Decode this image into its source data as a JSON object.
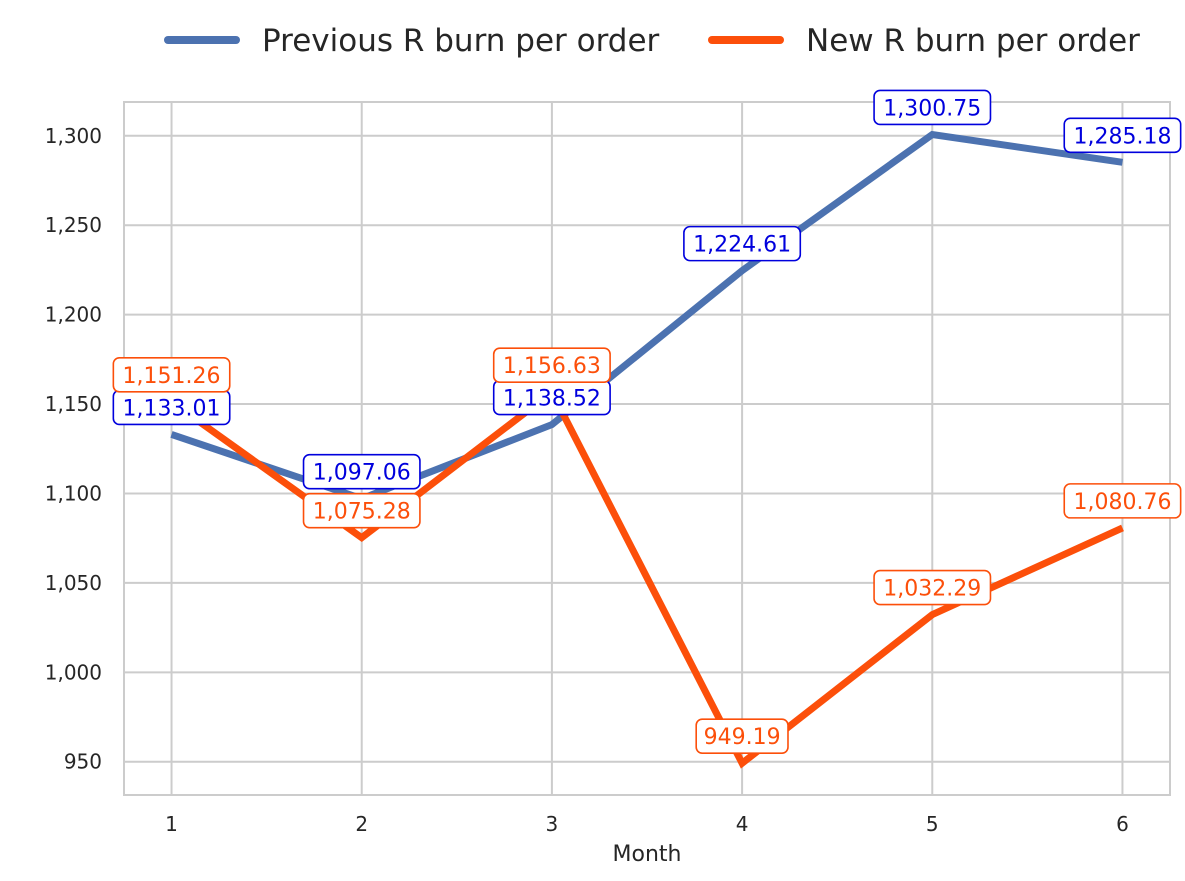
{
  "chart_data": {
    "type": "line",
    "title": "",
    "xlabel": "Month",
    "ylabel": "",
    "x": [
      1,
      2,
      3,
      4,
      5,
      6
    ],
    "x_tick_labels": [
      "1",
      "2",
      "3",
      "4",
      "5",
      "6"
    ],
    "xlim": [
      0.75,
      6.25
    ],
    "ylim": [
      931.4,
      1318.9
    ],
    "y_ticks": [
      950,
      1000,
      1050,
      1100,
      1150,
      1200,
      1250,
      1300
    ],
    "y_tick_labels": [
      "950",
      "1,000",
      "1,050",
      "1,100",
      "1,150",
      "1,200",
      "1,250",
      "1,300"
    ],
    "grid": true,
    "legend_position": "top-center, above plot",
    "series": [
      {
        "name": "Previous R burn per order",
        "color": "#4c72b0",
        "label_color": "#0000dd",
        "values": [
          1133.01,
          1097.06,
          1138.52,
          1224.61,
          1300.75,
          1285.18
        ],
        "data_labels": [
          "1,133.01",
          "1,097.06",
          "1,138.52",
          "1,224.61",
          "1,300.75",
          "1,285.18"
        ]
      },
      {
        "name": "New R burn per order",
        "color": "#fc4f0a",
        "label_color": "#fc4f0a",
        "values": [
          1151.26,
          1075.28,
          1156.63,
          949.19,
          1032.29,
          1080.76
        ],
        "data_labels": [
          "1,151.26",
          "1,075.28",
          "1,156.63",
          "949.19",
          "1,032.29",
          "1,080.76"
        ]
      }
    ]
  }
}
